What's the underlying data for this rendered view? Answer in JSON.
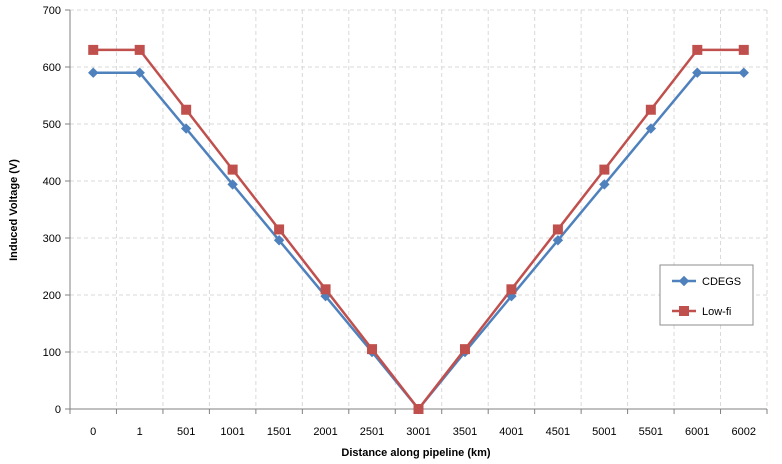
{
  "chart_data": {
    "type": "line",
    "title": "",
    "xlabel": "Distance along pipeline (km)",
    "ylabel": "Induced Voltage (V)",
    "categories": [
      "0",
      "1",
      "501",
      "1001",
      "1501",
      "2001",
      "2501",
      "3001",
      "3501",
      "4001",
      "4501",
      "5001",
      "5501",
      "6001",
      "6002"
    ],
    "ylim": [
      0,
      700
    ],
    "yticks": [
      0,
      100,
      200,
      300,
      400,
      500,
      600,
      700
    ],
    "grid": true,
    "legend_position": "right",
    "series": [
      {
        "name": "CDEGS",
        "color": "#4F81BD",
        "marker": "diamond",
        "values": [
          590,
          590,
          492,
          394,
          296,
          198,
          100,
          0,
          100,
          198,
          296,
          394,
          492,
          590,
          590
        ]
      },
      {
        "name": "Low-fi",
        "color": "#C0504D",
        "marker": "square",
        "values": [
          630,
          630,
          525,
          420,
          315,
          210,
          105,
          0,
          105,
          210,
          315,
          420,
          525,
          630,
          630
        ]
      }
    ]
  }
}
